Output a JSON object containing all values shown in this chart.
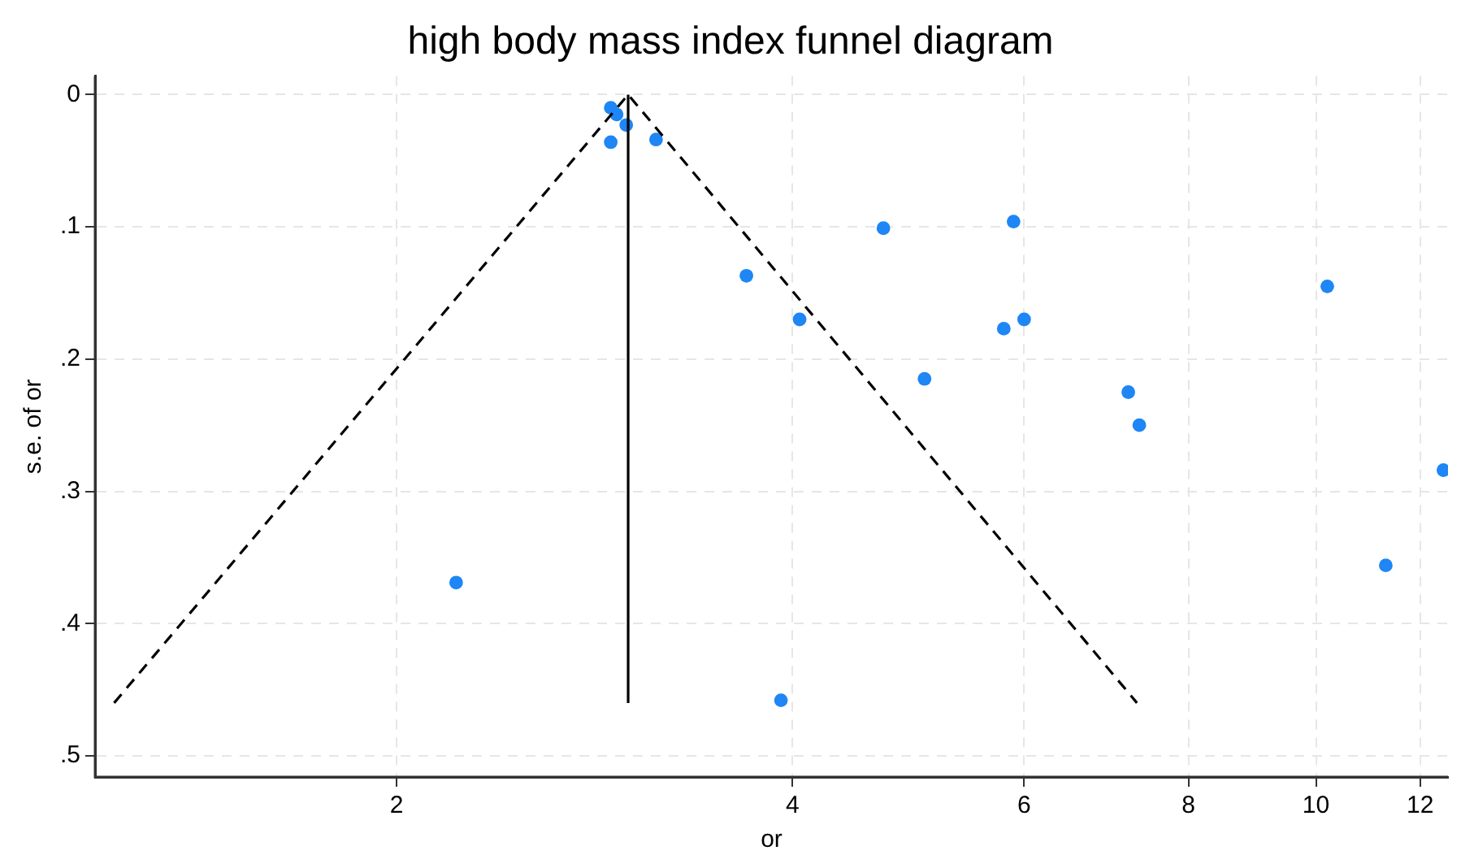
{
  "chart_data": {
    "type": "scatter",
    "title": "high body mass index funnel diagram",
    "xlabel": "or",
    "ylabel": "s.e. of or",
    "log": "x",
    "xlim": [
      1.18,
      12.6
    ],
    "xticks": [
      2,
      4,
      6,
      8,
      10,
      12
    ],
    "ylim": [
      0.516,
      -0.014
    ],
    "yticks": [
      {
        "value": 0,
        "label": "0"
      },
      {
        "value": 0.1,
        "label": ".1"
      },
      {
        "value": 0.2,
        "label": ".2"
      },
      {
        "value": 0.3,
        "label": ".3"
      },
      {
        "value": 0.4,
        "label": ".4"
      },
      {
        "value": 0.5,
        "label": ".5"
      }
    ],
    "grid": true,
    "legend": false,
    "series": [
      {
        "type": "line",
        "color": "#000000",
        "line_style": "dashed",
        "marker": "none",
        "x": [
          1.22,
          3.0,
          7.31
        ],
        "values": [
          0.46,
          0,
          0.46
        ]
      },
      {
        "type": "line",
        "color": "#000000",
        "line_style": "solid",
        "marker": "none",
        "x": [
          3.0,
          3.0
        ],
        "values": [
          0.46,
          0
        ]
      },
      {
        "type": "scatter",
        "color": "#1e86f5",
        "marker": "circle",
        "x": [
          2.91,
          2.94,
          2.99,
          2.91,
          3.15,
          3.69,
          4.05,
          4.69,
          5.04,
          5.89,
          5.79,
          6.0,
          7.2,
          7.34,
          10.2,
          11.3,
          12.5,
          2.22,
          3.92
        ],
        "values": [
          0.01,
          0.015,
          0.023,
          0.036,
          0.034,
          0.137,
          0.17,
          0.101,
          0.215,
          0.096,
          0.177,
          0.17,
          0.225,
          0.25,
          0.145,
          0.356,
          0.284,
          0.369,
          0.458
        ]
      }
    ]
  }
}
